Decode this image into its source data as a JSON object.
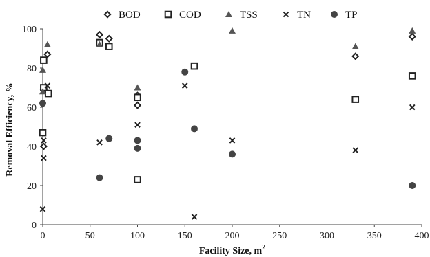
{
  "chart_data": {
    "type": "scatter",
    "title": "",
    "xlabel": "Facility Size, m",
    "xlabel_superscript": "2",
    "ylabel": "Removal Efficiency, %",
    "xlim": [
      0,
      400
    ],
    "ylim": [
      0,
      100
    ],
    "xticks": [
      0,
      50,
      100,
      150,
      200,
      250,
      300,
      350,
      400
    ],
    "yticks": [
      0,
      20,
      40,
      60,
      80,
      100
    ],
    "grid": false,
    "legend_position": "top",
    "series": [
      {
        "name": "BOD",
        "marker": "diamond",
        "color": "#222222",
        "points": [
          [
            1,
            40
          ],
          [
            1,
            69
          ],
          [
            5,
            87
          ],
          [
            60,
            97
          ],
          [
            70,
            95
          ],
          [
            100,
            61
          ],
          [
            100,
            66
          ],
          [
            330,
            86
          ],
          [
            390,
            96
          ]
        ]
      },
      {
        "name": "COD",
        "marker": "square",
        "color": "#222222",
        "points": [
          [
            0,
            47
          ],
          [
            1,
            84
          ],
          [
            1,
            70
          ],
          [
            6,
            67
          ],
          [
            60,
            93
          ],
          [
            70,
            91
          ],
          [
            100,
            23
          ],
          [
            100,
            65
          ],
          [
            160,
            81
          ],
          [
            330,
            64
          ],
          [
            390,
            76
          ]
        ]
      },
      {
        "name": "TSS",
        "marker": "triangle",
        "color": "#555555",
        "points": [
          [
            0,
            79
          ],
          [
            0,
            68
          ],
          [
            5,
            92
          ],
          [
            60,
            92
          ],
          [
            100,
            70
          ],
          [
            200,
            99
          ],
          [
            330,
            91
          ],
          [
            390,
            99
          ]
        ]
      },
      {
        "name": "TN",
        "marker": "x",
        "color": "#222222",
        "points": [
          [
            0,
            8
          ],
          [
            1,
            34
          ],
          [
            1,
            43
          ],
          [
            5,
            71
          ],
          [
            60,
            42
          ],
          [
            100,
            51
          ],
          [
            150,
            71
          ],
          [
            160,
            4
          ],
          [
            200,
            43
          ],
          [
            330,
            38
          ],
          [
            390,
            60
          ]
        ]
      },
      {
        "name": "TP",
        "marker": "circle",
        "color": "#444444",
        "points": [
          [
            0,
            62
          ],
          [
            60,
            24
          ],
          [
            70,
            44
          ],
          [
            100,
            43
          ],
          [
            100,
            39
          ],
          [
            150,
            78
          ],
          [
            160,
            49
          ],
          [
            200,
            36
          ],
          [
            390,
            20
          ]
        ]
      }
    ]
  }
}
